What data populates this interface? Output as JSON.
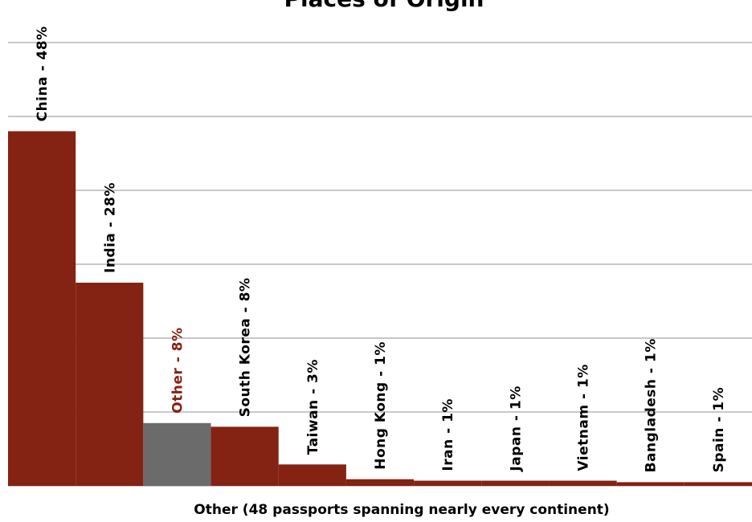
{
  "chart_data": {
    "type": "bar",
    "title": "Places of Origin",
    "xlabel": "Other (48 passports spanning nearly every continent)",
    "ylabel": "",
    "ylim": [
      0,
      55
    ],
    "grid": true,
    "bars": [
      {
        "label": "China - 48%",
        "value": 48,
        "color": "#842213",
        "label_color": "#000000"
      },
      {
        "label": "India - 28%",
        "value": 27.5,
        "color": "#842213",
        "label_color": "#000000"
      },
      {
        "label": "Other - 8%",
        "value": 8.5,
        "color": "#6b6b6b",
        "label_color": "#842213"
      },
      {
        "label": "South Korea - 8%",
        "value": 8,
        "color": "#842213",
        "label_color": "#000000"
      },
      {
        "label": "Taiwan - 3%",
        "value": 2.9,
        "color": "#842213",
        "label_color": "#000000"
      },
      {
        "label": "Hong Kong - 1%",
        "value": 0.9,
        "color": "#842213",
        "label_color": "#000000"
      },
      {
        "label": "Iran - 1%",
        "value": 0.7,
        "color": "#842213",
        "label_color": "#000000"
      },
      {
        "label": "Japan - 1%",
        "value": 0.7,
        "color": "#842213",
        "label_color": "#000000"
      },
      {
        "label": "Vietnam - 1%",
        "value": 0.7,
        "color": "#842213",
        "label_color": "#000000"
      },
      {
        "label": "Bangladesh - 1%",
        "value": 0.5,
        "color": "#842213",
        "label_color": "#000000"
      },
      {
        "label": "Spain - 1%",
        "value": 0.5,
        "color": "#842213",
        "label_color": "#000000"
      }
    ],
    "gridline_values": [
      10,
      20,
      30,
      40,
      50,
      60
    ],
    "grid_color": "#c8c8c8"
  }
}
